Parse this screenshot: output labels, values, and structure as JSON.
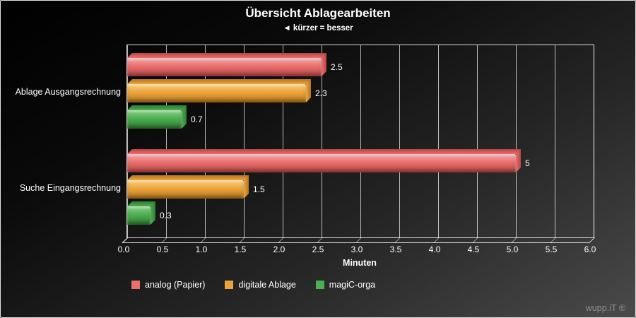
{
  "chart_data": {
    "type": "bar",
    "orientation": "horizontal",
    "title": "Übersicht Ablagearbeiten",
    "subtitle": "◄ kürzer = besser",
    "categories": [
      "Ablage Ausgangsrechnung",
      "Suche Eingangsrechnung"
    ],
    "series": [
      {
        "name": "analog (Papier)",
        "values": [
          2.5,
          5
        ],
        "value_labels": [
          "2.5",
          "5"
        ],
        "color": "#ea6f6f",
        "color_light": "#f7abab",
        "color_dark": "#b84444"
      },
      {
        "name": "digitale Ablage",
        "values": [
          2.3,
          1.5
        ],
        "value_labels": [
          "2.3",
          "1.5"
        ],
        "color": "#eda43d",
        "color_light": "#f7cf80",
        "color_dark": "#b5761c"
      },
      {
        "name": "magiC-orga",
        "values": [
          0.7,
          0.3
        ],
        "value_labels": [
          "0.7",
          "0.3"
        ],
        "color": "#4caf50",
        "color_light": "#8ed08a",
        "color_dark": "#2e7d32"
      }
    ],
    "xlabel": "Minuten",
    "xlim": [
      0,
      6
    ],
    "xticks": [
      "0.0",
      "0.5",
      "1.0",
      "1.5",
      "2.0",
      "2.5",
      "3.0",
      "3.5",
      "4.0",
      "4.5",
      "5.0",
      "5.5",
      "6.0"
    ],
    "grid": true,
    "legend_position": "bottom"
  },
  "watermark": "wupp.iT ®"
}
